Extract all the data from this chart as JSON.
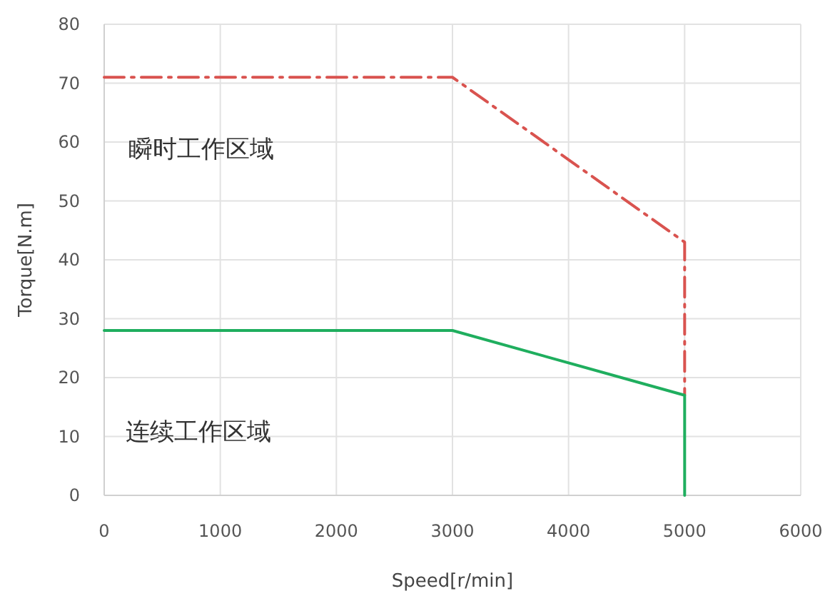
{
  "chart_data": {
    "type": "line",
    "xlabel": "Speed[r/min]",
    "ylabel": "Torque[N.m]",
    "series": [
      {
        "color": "#d9534f",
        "x": [
          0,
          3000,
          5000,
          5000
        ],
        "values": [
          71,
          71,
          43,
          17
        ],
        "line_style": "dashed"
      },
      {
        "color": "#1fae5e",
        "x": [
          0,
          3000,
          5000,
          5000
        ],
        "values": [
          28,
          28,
          17,
          0
        ],
        "line_style": "solid"
      }
    ],
    "xlim": [
      0,
      6000
    ],
    "xticks": [
      0,
      1000,
      2000,
      3000,
      4000,
      5000,
      6000
    ],
    "ylim": [
      0,
      80
    ],
    "yticks": [
      0,
      10,
      20,
      30,
      40,
      50,
      60,
      70,
      80
    ],
    "grid": true,
    "marker": "none",
    "annotations": [
      "瞬时工作区域",
      "连续工作区域"
    ]
  }
}
